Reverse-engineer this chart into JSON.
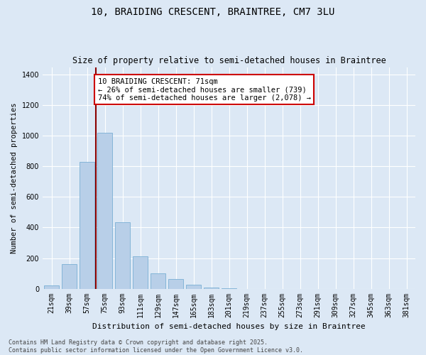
{
  "title": "10, BRAIDING CRESCENT, BRAINTREE, CM7 3LU",
  "subtitle": "Size of property relative to semi-detached houses in Braintree",
  "xlabel": "Distribution of semi-detached houses by size in Braintree",
  "ylabel": "Number of semi-detached properties",
  "categories": [
    "21sqm",
    "39sqm",
    "57sqm",
    "75sqm",
    "93sqm",
    "111sqm",
    "129sqm",
    "147sqm",
    "165sqm",
    "183sqm",
    "201sqm",
    "219sqm",
    "237sqm",
    "255sqm",
    "273sqm",
    "291sqm",
    "309sqm",
    "327sqm",
    "345sqm",
    "363sqm",
    "381sqm"
  ],
  "values": [
    20,
    160,
    830,
    1020,
    435,
    210,
    100,
    65,
    28,
    8,
    2,
    0,
    0,
    0,
    0,
    0,
    0,
    0,
    0,
    0,
    0
  ],
  "bar_color": "#b8cfe8",
  "bar_edgecolor": "#7aafd4",
  "vline_color": "#8b0000",
  "annotation_text": "10 BRAIDING CRESCENT: 71sqm\n← 26% of semi-detached houses are smaller (739)\n74% of semi-detached houses are larger (2,078) →",
  "annotation_box_facecolor": "white",
  "annotation_box_edgecolor": "#cc0000",
  "ylim": [
    0,
    1450
  ],
  "yticks": [
    0,
    200,
    400,
    600,
    800,
    1000,
    1200,
    1400
  ],
  "background_color": "#dce8f5",
  "plot_bg_color": "#dce8f5",
  "grid_color": "white",
  "footer_line1": "Contains HM Land Registry data © Crown copyright and database right 2025.",
  "footer_line2": "Contains public sector information licensed under the Open Government Licence v3.0.",
  "title_fontsize": 10,
  "subtitle_fontsize": 8.5,
  "xlabel_fontsize": 8,
  "ylabel_fontsize": 7.5,
  "tick_fontsize": 7,
  "annot_fontsize": 7.5,
  "footer_fontsize": 6
}
